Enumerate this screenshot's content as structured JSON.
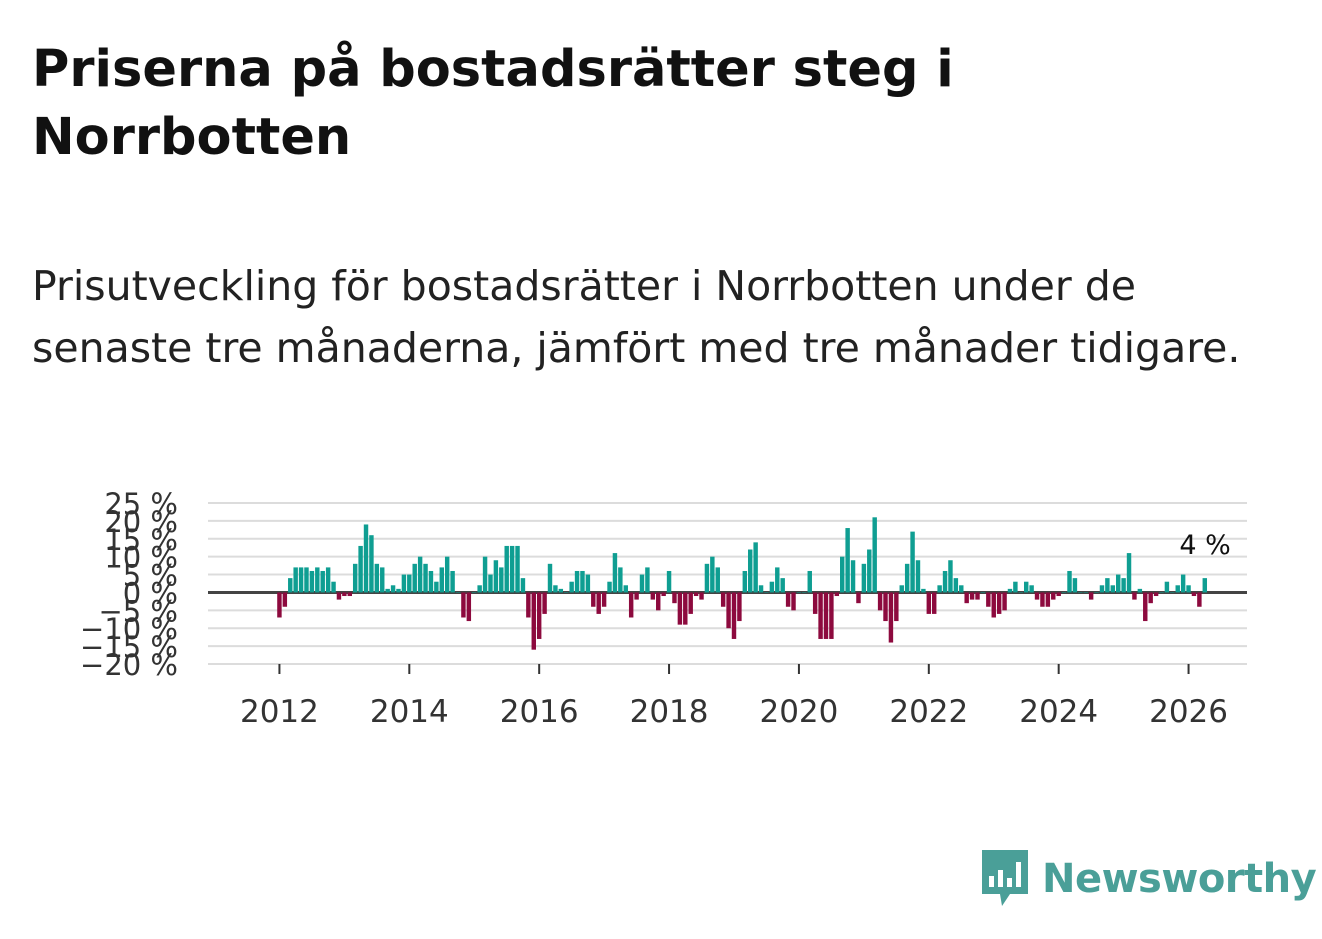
{
  "header": {
    "title": "Priserna på bostadsrätter steg i Norrbotten",
    "subtitle": "Prisutveckling för bostadsrätter i Norrbotten under de senaste tre månaderna, jämfört med tre månader tidigare."
  },
  "brand": {
    "name": "Newsworthy",
    "color": "#4a9f98"
  },
  "colors": {
    "positive": "#0f9e92",
    "negative": "#8d0a3e",
    "grid": "#dcdcdc",
    "zero": "#444444"
  },
  "chart_data": {
    "type": "bar",
    "title": "Priserna på bostadsrätter steg i Norrbotten",
    "xlabel": "",
    "ylabel": "",
    "ylim": [
      -20,
      25
    ],
    "xlim": [
      2010.9,
      2026.9
    ],
    "y_ticks": [
      -20,
      -15,
      -10,
      -5,
      0,
      5,
      10,
      15,
      20,
      25
    ],
    "y_tick_labels": [
      "−20 %",
      "−15 %",
      "−10 %",
      "−5 %",
      "0 %",
      "5 %",
      "10 %",
      "15 %",
      "20 %",
      "25 %"
    ],
    "x_ticks": [
      2012,
      2014,
      2016,
      2018,
      2020,
      2022,
      2024,
      2026
    ],
    "x_tick_labels": [
      "2012",
      "2014",
      "2016",
      "2018",
      "2020",
      "2022",
      "2024",
      "2026"
    ],
    "start": {
      "year": 2012,
      "month": 1
    },
    "annotation": {
      "label": "4 %",
      "value": 4
    },
    "values": [
      -7,
      -4,
      4,
      7,
      7,
      7,
      6,
      7,
      6,
      7,
      3,
      -2,
      -1,
      -1,
      8,
      13,
      19,
      16,
      8,
      7,
      1,
      2,
      1,
      5,
      5,
      8,
      10,
      8,
      6,
      3,
      7,
      10,
      6,
      0,
      -7,
      -8,
      0,
      2,
      10,
      5,
      9,
      7,
      13,
      13,
      13,
      4,
      -7,
      -16,
      -13,
      -6,
      8,
      2,
      1,
      0,
      3,
      6,
      6,
      5,
      -4,
      -6,
      -4,
      3,
      11,
      7,
      2,
      -7,
      -2,
      5,
      7,
      -2,
      -5,
      -1,
      6,
      -3,
      -9,
      -9,
      -6,
      -1,
      -2,
      8,
      10,
      7,
      -4,
      -10,
      -13,
      -8,
      6,
      12,
      14,
      2,
      0,
      3,
      7,
      4,
      -4,
      -5,
      0,
      0,
      6,
      -6,
      -13,
      -13,
      -13,
      -1,
      10,
      18,
      9,
      -3,
      8,
      12,
      21,
      -5,
      -8,
      -14,
      -8,
      2,
      8,
      17,
      9,
      1,
      -6,
      -6,
      2,
      6,
      9,
      4,
      2,
      -3,
      -2,
      -2,
      0,
      -4,
      -7,
      -6,
      -5,
      1,
      3,
      0,
      3,
      2,
      -2,
      -4,
      -4,
      -2,
      -1,
      0,
      6,
      4,
      0,
      0,
      -2,
      0,
      2,
      4,
      2,
      5,
      4,
      11,
      -2,
      1,
      -8,
      -3,
      -1,
      0,
      3,
      0,
      2,
      5,
      2,
      -1,
      -4,
      4
    ]
  }
}
